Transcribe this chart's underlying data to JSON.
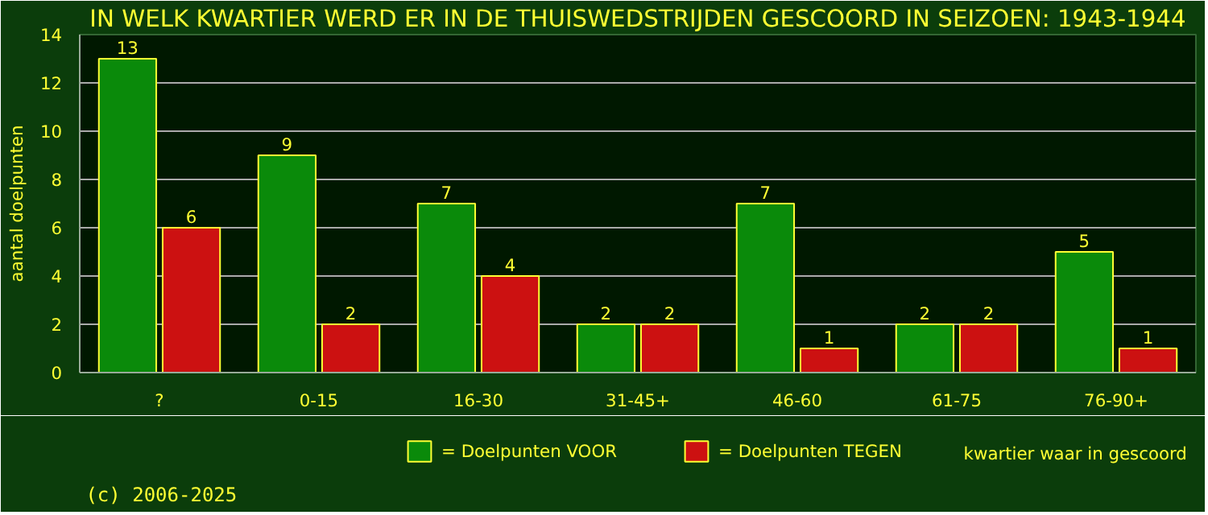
{
  "chart_data": {
    "type": "bar",
    "title": "IN WELK KWARTIER WERD ER IN DE THUISWEDSTRIJDEN GESCOORD IN SEIZOEN: 1943-1944",
    "xlabel": "kwartier waar in gescoord",
    "ylabel": "aantal doelpunten",
    "categories": [
      "?",
      "0-15",
      "16-30",
      "31-45+",
      "46-60",
      "61-75",
      "76-90+"
    ],
    "series": [
      {
        "name": "= Doelpunten VOOR",
        "color": "#0a8a0a",
        "values": [
          13,
          9,
          7,
          2,
          7,
          2,
          5
        ]
      },
      {
        "name": "= Doelpunten TEGEN",
        "color": "#cc1111",
        "values": [
          6,
          2,
          4,
          2,
          1,
          2,
          1
        ]
      }
    ],
    "ylim": [
      0,
      14
    ],
    "yticks": [
      0,
      2,
      4,
      6,
      8,
      10,
      12,
      14
    ],
    "grid": "y",
    "legend": "bottom",
    "data_labels": true,
    "annotations": [
      "(c) 2006-2025"
    ]
  }
}
